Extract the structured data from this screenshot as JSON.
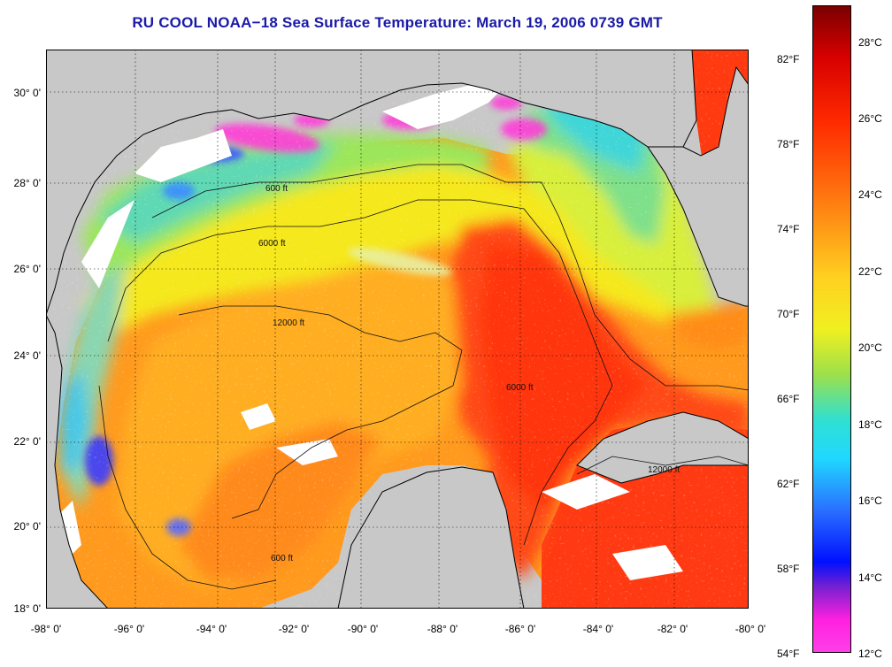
{
  "title": "RU COOL  NOAA−18  Sea Surface Temperature:  March 19, 2006 0739 GMT",
  "lat_ticks": [
    {
      "label": "30° 0'",
      "value": 30
    },
    {
      "label": "28° 0'",
      "value": 28
    },
    {
      "label": "26° 0'",
      "value": 26
    },
    {
      "label": "24° 0'",
      "value": 24
    },
    {
      "label": "22° 0'",
      "value": 22
    },
    {
      "label": "20° 0'",
      "value": 20
    },
    {
      "label": "18° 0'",
      "value": 18
    }
  ],
  "lon_ticks": [
    {
      "label": "-98° 0'",
      "value": -98
    },
    {
      "label": "-96° 0'",
      "value": -96
    },
    {
      "label": "-94° 0'",
      "value": -94
    },
    {
      "label": "-92° 0'",
      "value": -92
    },
    {
      "label": "-90° 0'",
      "value": -90
    },
    {
      "label": "-88° 0'",
      "value": -88
    },
    {
      "label": "-86° 0'",
      "value": -86
    },
    {
      "label": "-84° 0'",
      "value": -84
    },
    {
      "label": "-82° 0'",
      "value": -82
    },
    {
      "label": "-80° 0'",
      "value": -80
    }
  ],
  "colorbar": {
    "celsius": [
      "28°C",
      "26°C",
      "24°C",
      "22°C",
      "20°C",
      "18°C",
      "16°C",
      "14°C",
      "12°C"
    ],
    "fahrenheit": [
      "82°F",
      "78°F",
      "74°F",
      "70°F",
      "66°F",
      "62°F",
      "58°F",
      "54°F"
    ]
  },
  "contour_labels": [
    "600 ft",
    "6000 ft",
    "12000 ft"
  ],
  "colors": {
    "land": "#c8c8c8",
    "clouds": "#ffffff",
    "title": "#1a1aa8",
    "contour": "#000000"
  }
}
